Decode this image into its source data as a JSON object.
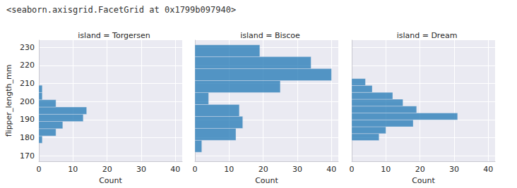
{
  "output": "<seaborn.axisgrid.FacetGrid at 0x1799b097940>",
  "chart_data": [
    {
      "type": "histogram",
      "title": "island = Torgersen",
      "orientation": "horizontal",
      "xlabel": "Count",
      "ylabel": "flipper_length_mm",
      "bins": [
        177,
        181,
        185,
        189,
        193,
        197,
        201,
        205,
        209
      ],
      "values": [
        1,
        5,
        7,
        13,
        14,
        5,
        1,
        1
      ],
      "color": "#1f77b4",
      "grid": true,
      "xlim": [
        0,
        42
      ],
      "xticks": [
        0,
        10,
        20,
        30,
        40
      ],
      "ylim": [
        167,
        234
      ],
      "yticks": [
        170,
        180,
        190,
        200,
        210,
        220,
        230
      ]
    },
    {
      "type": "histogram",
      "title": "island = Biscoe",
      "orientation": "horizontal",
      "xlabel": "Count",
      "bins": [
        172,
        178.6,
        185.2,
        191.8,
        198.4,
        205,
        211.6,
        218.2,
        224.8,
        231.4
      ],
      "values": [
        2,
        12,
        14,
        13,
        4,
        25,
        40,
        34,
        19
      ],
      "color": "#1f77b4",
      "grid": true,
      "tick_labels": "x",
      "xlim": [
        0,
        42
      ],
      "xticks": [
        0,
        10,
        20,
        30,
        40
      ],
      "ylim": [
        167,
        234
      ],
      "yticks": [
        170,
        180,
        190,
        200,
        210,
        220,
        230
      ]
    },
    {
      "type": "histogram",
      "title": "island = Dream",
      "orientation": "horizontal",
      "xlabel": "Count",
      "bins": [
        178.5,
        182.3,
        186.1,
        189.9,
        193.7,
        197.5,
        201.3,
        205.1,
        208.9,
        212.7
      ],
      "values": [
        8,
        10,
        18,
        31,
        19,
        15,
        12,
        6,
        4
      ],
      "color": "#1f77b4",
      "grid": true,
      "tick_labels": "x",
      "xlim": [
        0,
        42
      ],
      "xticks": [
        0,
        10,
        20,
        30,
        40
      ],
      "ylim": [
        167,
        234
      ],
      "yticks": [
        170,
        180,
        190,
        200,
        210,
        220,
        230
      ]
    }
  ]
}
